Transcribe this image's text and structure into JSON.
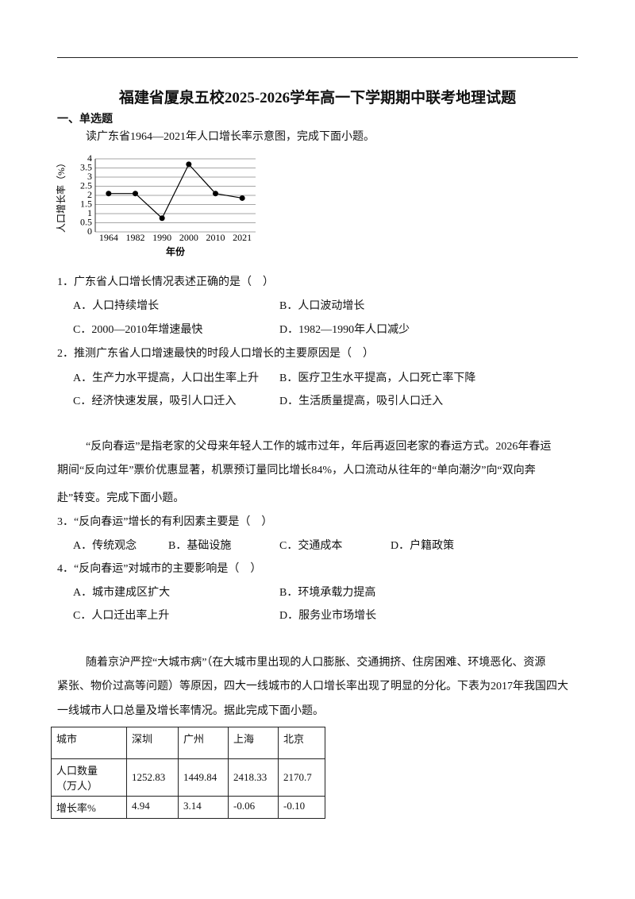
{
  "header": {
    "title": "福建省厦泉五校2025-2026学年高一下学期期中联考地理试题"
  },
  "section": "一、单选题",
  "intro1": "读广东省1964—2021年人口增长率示意图，完成下面小题。",
  "chart_data": {
    "type": "line",
    "ylabel": "人口增长率（%）",
    "xlabel": "年份",
    "categories": [
      "1964",
      "1982",
      "1990",
      "2000",
      "2010",
      "2021"
    ],
    "values": [
      2.1,
      2.1,
      0.75,
      3.7,
      2.1,
      1.85
    ],
    "color": "#000000",
    "ylim": [
      0,
      4
    ],
    "yticks": [
      0,
      0.5,
      1,
      1.5,
      2,
      2.5,
      3,
      3.5,
      4
    ],
    "grid": true
  },
  "questions": [
    {
      "stem": "1．广东省人口增长情况表述正确的是（　）",
      "options": [
        "A．人口持续增长",
        "B．人口波动增长",
        "C．2000—2010年增速最快",
        "D．1982—1990年人口减少"
      ]
    },
    {
      "stem": "2．推测广东省人口增速最快的时段人口增长的主要原因是（　）",
      "options": [
        "A．生产力水平提高，人口出生率上升",
        "B．医疗卫生水平提高，人口死亡率下降",
        "C．经济快速发展，吸引人口迁入",
        "D．生活质量提高，吸引人口迁入"
      ]
    },
    {
      "stem": "3．“反向春运”增长的有利因素主要是（　）",
      "options": [
        "A．传统观念",
        "B．基础设施",
        "C．交通成本",
        "D．户籍政策"
      ]
    },
    {
      "stem": "4．“反向春运”对城市的主要影响是（　）",
      "options": [
        "A．城市建成区扩大",
        "B．环境承载力提高",
        "C．人口迁出率上升",
        "D．服务业市场增长"
      ]
    }
  ],
  "passage2": [
    "“反向春运”是指老家的父母来年轻人工作的城市过年，年后再返回老家的春运方式。2026年春运",
    "期间“反向过年”票价优惠显著，机票预订量同比增长84%，人口流动从往年的“单向潮汐”向“双向奔",
    "赴”转变。完成下面小题。"
  ],
  "passage3": [
    "随着京沪严控“大城市病”（在大城市里出现的人口膨胀、交通拥挤、住房困难、环境恶化、资源",
    "紧张、物价过高等问题）等原因，四大一线城市的人口增长率出现了明显的分化。下表为2017年我国四大",
    "一线城市人口总量及增长率情况。据此完成下面小题。"
  ],
  "table": {
    "rows": [
      [
        "城市",
        "深圳",
        "广州",
        "上海",
        "北京"
      ],
      [
        "人口数量（万人）",
        "1252.83",
        "1449.84",
        "2418.33",
        "2170.7"
      ],
      [
        "增长率%",
        "4.94",
        "3.14",
        "-0.06",
        "-0.10"
      ]
    ]
  }
}
